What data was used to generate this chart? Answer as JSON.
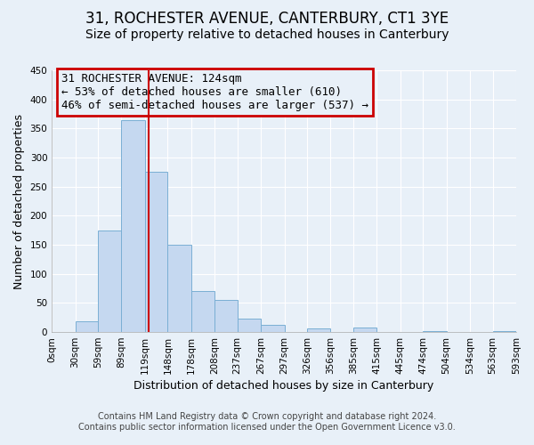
{
  "title": "31, ROCHESTER AVENUE, CANTERBURY, CT1 3YE",
  "subtitle": "Size of property relative to detached houses in Canterbury",
  "xlabel": "Distribution of detached houses by size in Canterbury",
  "ylabel": "Number of detached properties",
  "bar_color": "#c5d8f0",
  "bar_edge_color": "#7aafd4",
  "bg_color": "#e8f0f8",
  "grid_color": "white",
  "annotation_box_color": "#cc0000",
  "vline_color": "#cc0000",
  "vline_x": 124,
  "annotation_title": "31 ROCHESTER AVENUE: 124sqm",
  "annotation_line1": "← 53% of detached houses are smaller (610)",
  "annotation_line2": "46% of semi-detached houses are larger (537) →",
  "bins": [
    0,
    30,
    59,
    89,
    119,
    148,
    178,
    208,
    237,
    267,
    297,
    326,
    356,
    385,
    415,
    445,
    474,
    504,
    534,
    563,
    593
  ],
  "counts": [
    0,
    18,
    175,
    365,
    275,
    150,
    70,
    55,
    23,
    12,
    0,
    6,
    0,
    8,
    0,
    0,
    1,
    0,
    0,
    1
  ],
  "ylim": [
    0,
    450
  ],
  "yticks": [
    0,
    50,
    100,
    150,
    200,
    250,
    300,
    350,
    400,
    450
  ],
  "xtick_labels": [
    "0sqm",
    "30sqm",
    "59sqm",
    "89sqm",
    "119sqm",
    "148sqm",
    "178sqm",
    "208sqm",
    "237sqm",
    "267sqm",
    "297sqm",
    "326sqm",
    "356sqm",
    "385sqm",
    "415sqm",
    "445sqm",
    "474sqm",
    "504sqm",
    "534sqm",
    "563sqm",
    "593sqm"
  ],
  "footer1": "Contains HM Land Registry data © Crown copyright and database right 2024.",
  "footer2": "Contains public sector information licensed under the Open Government Licence v3.0.",
  "title_fontsize": 12,
  "subtitle_fontsize": 10,
  "axis_label_fontsize": 9,
  "tick_fontsize": 7.5,
  "annotation_fontsize": 9,
  "footer_fontsize": 7
}
